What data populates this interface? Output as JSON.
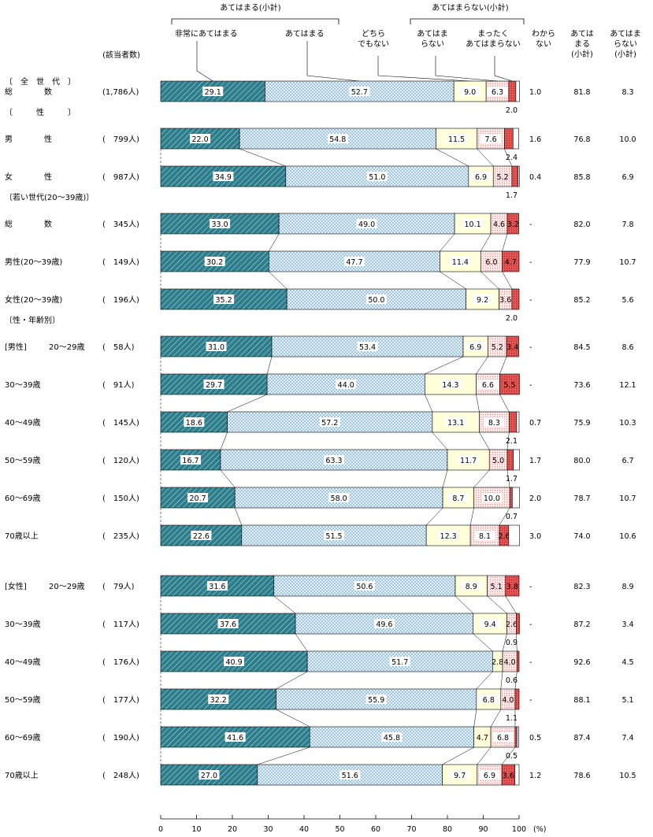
{
  "chart_data": {
    "type": "bar",
    "orientation": "horizontal",
    "stacked": true,
    "xlim": [
      0,
      100
    ],
    "x_ticks": [
      "0",
      "10",
      "20",
      "30",
      "40",
      "50",
      "60",
      "70",
      "80",
      "90",
      "100"
    ],
    "x_unit": "(%)",
    "header": {
      "group_positive": "あてはまる(小計)",
      "group_negative": "あてはまらない(小計)",
      "count_label": "(該当者数)",
      "column_labels": {
        "dontknow": [
          "わから",
          "ない"
        ],
        "sum_positive": [
          "あては",
          "まる",
          "(小計)"
        ],
        "sum_negative": [
          "あてはま",
          "らない",
          "(小計)"
        ]
      }
    },
    "legend": [
      {
        "name": "非常にあてはまる",
        "lines": [
          "非常にあてはまる"
        ],
        "color": "#2e7d8c"
      },
      {
        "name": "あてはまる",
        "lines": [
          "あてはまる"
        ],
        "color": "#d6e8f5"
      },
      {
        "name": "どちらでもない",
        "lines": [
          "どちら",
          "でもない"
        ],
        "color": "#ffffd9"
      },
      {
        "name": "あてはまらない",
        "lines": [
          "あてはま",
          "らない"
        ],
        "color": "#fde3e3"
      },
      {
        "name": "まったくあてはまらない",
        "lines": [
          "まったく",
          "あてはまらない"
        ],
        "color": "#e06060"
      },
      {
        "name": "わからない",
        "lines": [
          "わから",
          "ない"
        ],
        "color": "#ffffff"
      }
    ],
    "rows": [
      {
        "kind": "section",
        "text": "〔　全　世　代　〕"
      },
      {
        "kind": "bar",
        "group": "",
        "label": "総　　　　数",
        "n": "(1,786人)",
        "values": [
          29.1,
          52.7,
          9.0,
          6.3,
          2.0,
          1.0
        ],
        "sum_pos": "81.8",
        "sum_neg": "8.3"
      },
      {
        "kind": "section",
        "text": "〔　　　性　　　〕"
      },
      {
        "kind": "bar",
        "group": "",
        "label": "男　　　　性",
        "n": "(　799人)",
        "values": [
          22.0,
          54.8,
          11.5,
          7.6,
          2.4,
          1.6
        ],
        "sum_pos": "76.8",
        "sum_neg": "10.0"
      },
      {
        "kind": "bar",
        "group": "",
        "label": "女　　　　性",
        "n": "(　987人)",
        "values": [
          34.9,
          51.0,
          6.9,
          5.2,
          1.7,
          0.4
        ],
        "sum_pos": "85.8",
        "sum_neg": "6.9"
      },
      {
        "kind": "section",
        "text": "〔若い世代(20～39歳)〕"
      },
      {
        "kind": "bar",
        "group": "",
        "label": "総　　　　数",
        "n": "(　345人)",
        "values": [
          33.0,
          49.0,
          10.1,
          4.6,
          3.2,
          0
        ],
        "sum_pos": "82.0",
        "sum_neg": "7.8"
      },
      {
        "kind": "bar",
        "group": "",
        "label": "男性(20～39歳)",
        "n": "(　149人)",
        "values": [
          30.2,
          47.7,
          11.4,
          6.0,
          4.7,
          0
        ],
        "sum_pos": "77.9",
        "sum_neg": "10.7"
      },
      {
        "kind": "bar",
        "group": "",
        "label": "女性(20～39歳)",
        "n": "(　196人)",
        "values": [
          35.2,
          50.0,
          9.2,
          3.6,
          2.0,
          0
        ],
        "sum_pos": "85.2",
        "sum_neg": "5.6"
      },
      {
        "kind": "section",
        "text": "〔性・年齢別〕"
      },
      {
        "kind": "bar",
        "group": "[男性]",
        "label": "20～29歳",
        "n": "(　58人)",
        "values": [
          31.0,
          53.4,
          6.9,
          5.2,
          3.4,
          0
        ],
        "sum_pos": "84.5",
        "sum_neg": "8.6"
      },
      {
        "kind": "bar",
        "group": "",
        "label": "30～39歳",
        "n": "(　91人)",
        "values": [
          29.7,
          44.0,
          14.3,
          6.6,
          5.5,
          0
        ],
        "sum_pos": "73.6",
        "sum_neg": "12.1"
      },
      {
        "kind": "bar",
        "group": "",
        "label": "40～49歳",
        "n": "(　145人)",
        "values": [
          18.6,
          57.2,
          13.1,
          8.3,
          2.1,
          0.7
        ],
        "sum_pos": "75.9",
        "sum_neg": "10.3"
      },
      {
        "kind": "bar",
        "group": "",
        "label": "50～59歳",
        "n": "(　120人)",
        "values": [
          16.7,
          63.3,
          11.7,
          5.0,
          1.7,
          1.7
        ],
        "sum_pos": "80.0",
        "sum_neg": "6.7"
      },
      {
        "kind": "bar",
        "group": "",
        "label": "60～69歳",
        "n": "(　150人)",
        "values": [
          20.7,
          58.0,
          8.7,
          10.0,
          0.7,
          2.0
        ],
        "sum_pos": "78.7",
        "sum_neg": "10.7"
      },
      {
        "kind": "bar",
        "group": "",
        "label": "70歳以上",
        "n": "(　235人)",
        "values": [
          22.6,
          51.5,
          12.3,
          8.1,
          2.6,
          3.0
        ],
        "sum_pos": "74.0",
        "sum_neg": "10.6"
      },
      {
        "kind": "gap"
      },
      {
        "kind": "bar",
        "group": "[女性]",
        "label": "20～29歳",
        "n": "(　79人)",
        "values": [
          31.6,
          50.6,
          8.9,
          5.1,
          3.8,
          0
        ],
        "sum_pos": "82.3",
        "sum_neg": "8.9"
      },
      {
        "kind": "bar",
        "group": "",
        "label": "30～39歳",
        "n": "(　117人)",
        "values": [
          37.6,
          49.6,
          9.4,
          2.6,
          0.9,
          0
        ],
        "sum_pos": "87.2",
        "sum_neg": "3.4"
      },
      {
        "kind": "bar",
        "group": "",
        "label": "40～49歳",
        "n": "(　176人)",
        "values": [
          40.9,
          51.7,
          2.8,
          4.0,
          0.6,
          0
        ],
        "sum_pos": "92.6",
        "sum_neg": "4.5"
      },
      {
        "kind": "bar",
        "group": "",
        "label": "50～59歳",
        "n": "(　177人)",
        "values": [
          32.2,
          55.9,
          6.8,
          4.0,
          1.1,
          0
        ],
        "sum_pos": "88.1",
        "sum_neg": "5.1"
      },
      {
        "kind": "bar",
        "group": "",
        "label": "60～69歳",
        "n": "(　190人)",
        "values": [
          41.6,
          45.8,
          4.7,
          6.8,
          0.5,
          0.5
        ],
        "sum_pos": "87.4",
        "sum_neg": "7.4"
      },
      {
        "kind": "bar",
        "group": "",
        "label": "70歳以上",
        "n": "(　248人)",
        "values": [
          27.0,
          51.6,
          9.7,
          6.9,
          3.6,
          1.2
        ],
        "sum_pos": "78.6",
        "sum_neg": "10.5"
      }
    ]
  }
}
